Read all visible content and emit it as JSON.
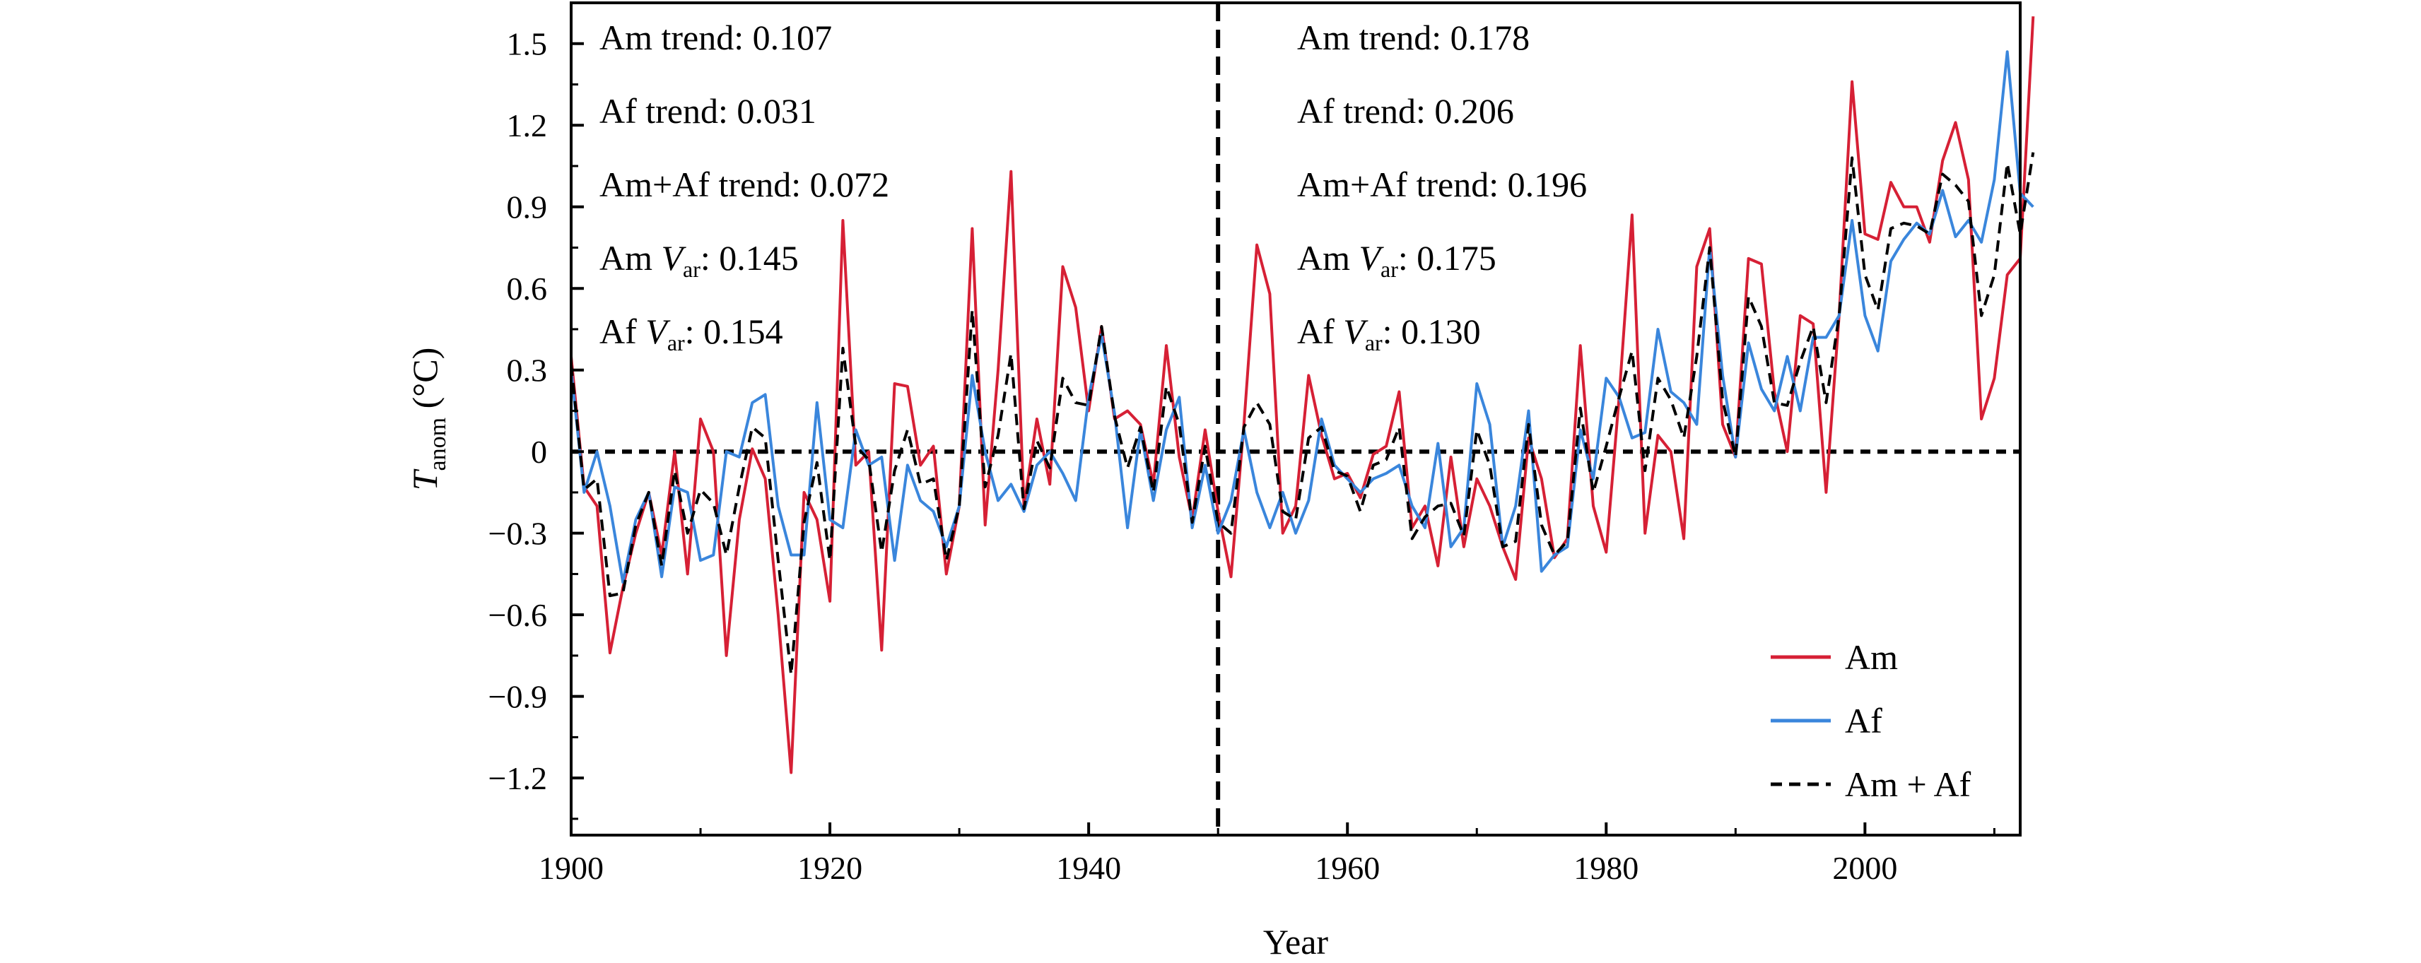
{
  "chart_data": {
    "type": "line",
    "xlabel": "Year",
    "ylabel": "T",
    "ylabel_sub": "anom",
    "ylabel_unit": " (°C)",
    "xlim": [
      1900,
      2012
    ],
    "ylim": [
      -1.41,
      1.65
    ],
    "x_ticks": [
      1900,
      1920,
      1940,
      1960,
      1980,
      2000
    ],
    "y_ticks": [
      1.5,
      1.2,
      0.9,
      0.6,
      0.3,
      0,
      -0.3,
      -0.6,
      -0.9,
      -1.2
    ],
    "y_tick_labels": [
      "1.5",
      "1.2",
      "0.9",
      "0.6",
      "0.3",
      "0",
      "−0.3",
      "−0.6",
      "−0.9",
      "−1.2"
    ],
    "zero_line": 0,
    "divider_year": 1950,
    "colors": {
      "am": "#d62035",
      "af": "#3a86dc",
      "am_af": "#000000"
    },
    "annotations_left": [
      {
        "text": "Am trend: 0.107"
      },
      {
        "text": "Af trend: 0.031"
      },
      {
        "text": "Am+Af trend: 0.072"
      },
      {
        "prefix": "Am ",
        "var": "V",
        "sub": "ar",
        "suffix": ": 0.145"
      },
      {
        "prefix": "Af ",
        "var": "V",
        "sub": "ar",
        "suffix": ": 0.154"
      }
    ],
    "annotations_right": [
      {
        "text": "Am trend: 0.178"
      },
      {
        "text": "Af trend: 0.206"
      },
      {
        "text": "Am+Af trend: 0.196"
      },
      {
        "prefix": "Am ",
        "var": "V",
        "sub": "ar",
        "suffix": ": 0.175"
      },
      {
        "prefix": "Af ",
        "var": "V",
        "sub": "ar",
        "suffix": ": 0.130"
      }
    ],
    "legend": [
      {
        "key": "am",
        "label": "Am"
      },
      {
        "key": "af",
        "label": "Af"
      },
      {
        "key": "am_af",
        "label": "Am + Af"
      }
    ],
    "x_start": 1900,
    "series": [
      {
        "name": "Am",
        "key": "am",
        "values": [
          0.35,
          -0.13,
          -0.2,
          -0.74,
          -0.5,
          -0.3,
          -0.15,
          -0.38,
          0.0,
          -0.45,
          0.12,
          0.0,
          -0.75,
          -0.25,
          0.01,
          -0.1,
          -0.6,
          -1.18,
          -0.15,
          -0.25,
          -0.55,
          0.85,
          -0.05,
          0.0,
          -0.73,
          0.25,
          0.24,
          -0.05,
          0.02,
          -0.45,
          -0.2,
          0.82,
          -0.27,
          0.3,
          1.03,
          -0.2,
          0.12,
          -0.12,
          0.68,
          0.53,
          0.15,
          0.46,
          0.12,
          0.15,
          0.1,
          -0.12,
          0.39,
          -0.02,
          -0.25,
          0.08,
          -0.22,
          -0.46,
          0.1,
          0.76,
          0.58,
          -0.3,
          -0.2,
          0.28,
          0.06,
          -0.1,
          -0.08,
          -0.17,
          -0.01,
          0.02,
          0.22,
          -0.28,
          -0.2,
          -0.42,
          -0.02,
          -0.35,
          -0.1,
          -0.2,
          -0.35,
          -0.47,
          0.05,
          -0.1,
          -0.39,
          -0.32,
          0.39,
          -0.2,
          -0.37,
          0.2,
          0.87,
          -0.3,
          0.06,
          0.0,
          -0.32,
          0.68,
          0.82,
          0.1,
          -0.02,
          0.71,
          0.69,
          0.22,
          0.0,
          0.5,
          0.47,
          -0.15,
          0.5,
          1.36,
          0.8,
          0.78,
          0.99,
          0.9,
          0.9,
          0.77,
          1.07,
          1.21,
          1.0,
          0.12,
          0.27,
          0.65,
          0.71,
          1.6
        ]
      },
      {
        "name": "Af",
        "key": "af",
        "values": [
          0.3,
          -0.15,
          0.0,
          -0.2,
          -0.48,
          -0.25,
          -0.15,
          -0.46,
          -0.13,
          -0.15,
          -0.4,
          -0.38,
          0.0,
          -0.02,
          0.18,
          0.21,
          -0.2,
          -0.38,
          -0.38,
          0.18,
          -0.25,
          -0.28,
          0.08,
          -0.05,
          -0.02,
          -0.4,
          -0.05,
          -0.18,
          -0.22,
          -0.35,
          -0.2,
          0.28,
          0.0,
          -0.18,
          -0.12,
          -0.22,
          -0.05,
          0.0,
          -0.08,
          -0.18,
          0.2,
          0.43,
          0.14,
          -0.28,
          0.08,
          -0.18,
          0.08,
          0.2,
          -0.28,
          -0.05,
          -0.3,
          -0.18,
          0.08,
          -0.15,
          -0.28,
          -0.15,
          -0.3,
          -0.18,
          0.12,
          -0.05,
          -0.1,
          -0.15,
          -0.1,
          -0.08,
          -0.05,
          -0.2,
          -0.28,
          0.03,
          -0.35,
          -0.28,
          0.25,
          0.1,
          -0.35,
          -0.2,
          0.15,
          -0.44,
          -0.38,
          -0.35,
          0.08,
          -0.1,
          0.27,
          0.2,
          0.05,
          0.07,
          0.45,
          0.22,
          0.18,
          0.1,
          0.75,
          0.28,
          -0.02,
          0.4,
          0.23,
          0.15,
          0.35,
          0.15,
          0.42,
          0.42,
          0.5,
          0.85,
          0.5,
          0.37,
          0.7,
          0.78,
          0.84,
          0.8,
          0.96,
          0.79,
          0.85,
          0.77,
          1.0,
          1.47,
          0.95,
          0.9
        ]
      },
      {
        "name": "Am + Af",
        "key": "am_af",
        "values": [
          0.32,
          -0.14,
          -0.1,
          -0.53,
          -0.52,
          -0.27,
          -0.15,
          -0.42,
          -0.07,
          -0.3,
          -0.14,
          -0.19,
          -0.38,
          -0.13,
          0.09,
          0.05,
          -0.4,
          -0.82,
          -0.26,
          -0.04,
          -0.4,
          0.38,
          0.02,
          -0.03,
          -0.37,
          -0.07,
          0.08,
          -0.12,
          -0.1,
          -0.4,
          -0.2,
          0.52,
          -0.13,
          0.06,
          0.36,
          -0.21,
          0.04,
          -0.06,
          0.27,
          0.18,
          0.17,
          0.46,
          0.13,
          -0.06,
          0.09,
          -0.15,
          0.24,
          0.1,
          -0.26,
          0.02,
          -0.26,
          -0.3,
          0.09,
          0.18,
          0.1,
          -0.22,
          -0.25,
          0.05,
          0.09,
          -0.07,
          -0.09,
          -0.22,
          -0.05,
          -0.03,
          0.09,
          -0.32,
          -0.24,
          -0.2,
          -0.19,
          -0.31,
          0.08,
          -0.05,
          -0.35,
          -0.33,
          0.1,
          -0.27,
          -0.38,
          -0.33,
          0.16,
          -0.15,
          0.02,
          0.2,
          0.37,
          -0.07,
          0.27,
          0.19,
          0.05,
          0.35,
          0.75,
          0.19,
          -0.02,
          0.57,
          0.46,
          0.18,
          0.17,
          0.33,
          0.46,
          0.18,
          0.5,
          1.08,
          0.65,
          0.52,
          0.82,
          0.84,
          0.83,
          0.8,
          1.02,
          0.98,
          0.92,
          0.5,
          0.65,
          1.06,
          0.8,
          1.1
        ]
      }
    ]
  }
}
